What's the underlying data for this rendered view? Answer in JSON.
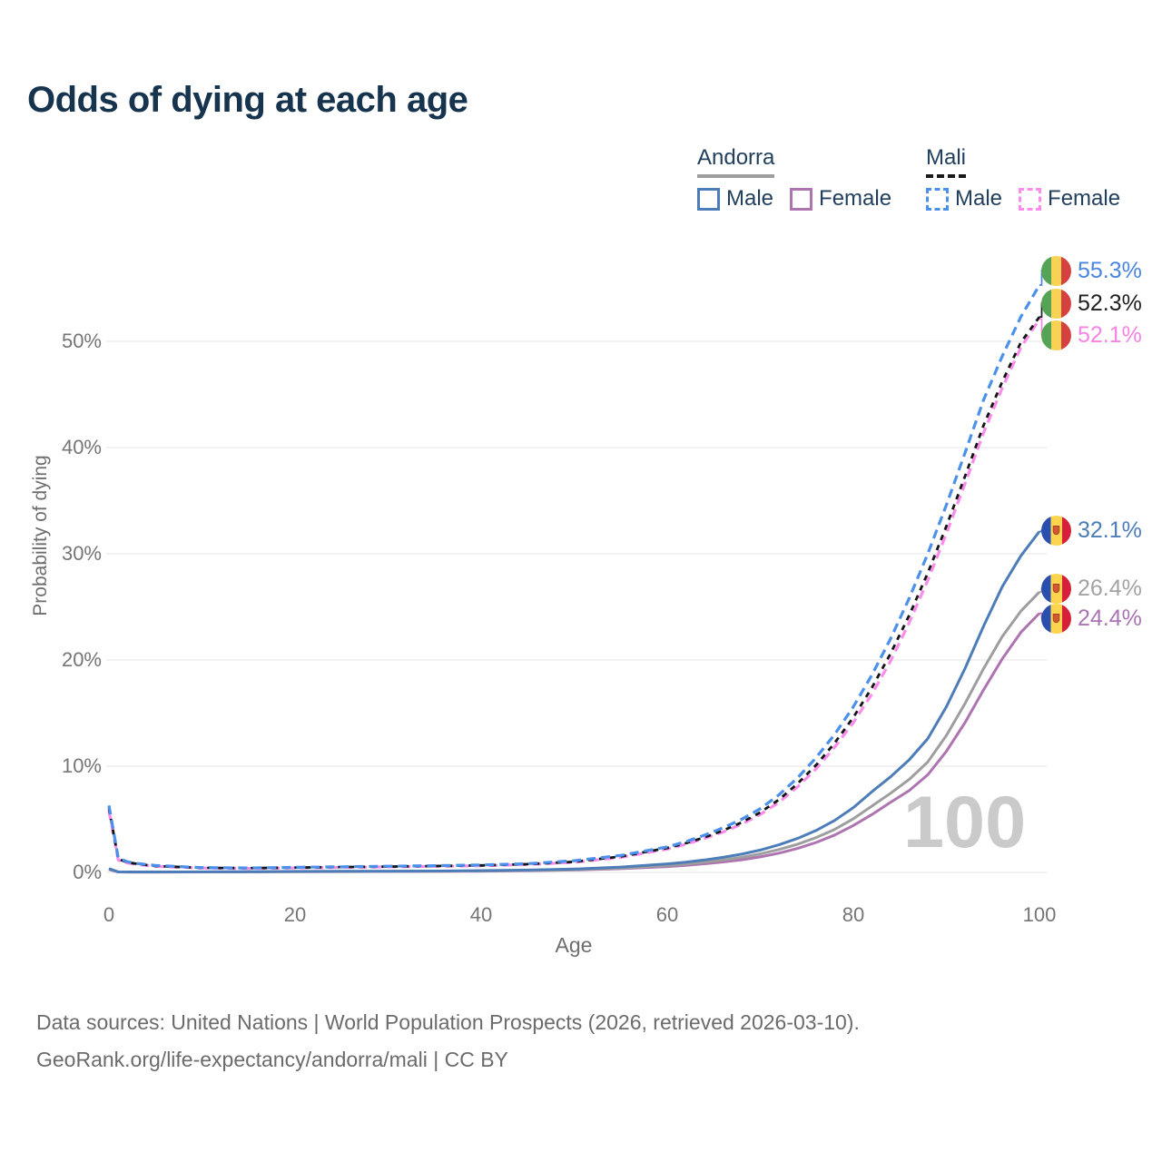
{
  "title": "Odds of dying at each age",
  "legend": {
    "groups": [
      {
        "name": "Andorra",
        "line_style": "solid",
        "underline_color": "#9e9e9e",
        "items": [
          {
            "label": "Male",
            "color": "#4d7db8"
          },
          {
            "label": "Female",
            "color": "#ad74b0"
          }
        ]
      },
      {
        "name": "Mali",
        "line_style": "dashed",
        "underline_color": "#1a1a1a",
        "items": [
          {
            "label": "Male",
            "color": "#4b90ea"
          },
          {
            "label": "Female",
            "color": "#fb8ceb"
          }
        ]
      }
    ]
  },
  "axes": {
    "x": {
      "label": "Age",
      "ticks": [
        "0",
        "20",
        "40",
        "60",
        "80",
        "100"
      ]
    },
    "y": {
      "label": "Probability of dying",
      "ticks": [
        "0%",
        "10%",
        "20%",
        "30%",
        "40%",
        "50%"
      ]
    }
  },
  "watermark": "100",
  "flags": {
    "mali": {
      "stripes": [
        "#55a455",
        "#f8d255",
        "#d5413e"
      ]
    },
    "andorra": {
      "stripes": [
        "#2a4fae",
        "#fcd44e",
        "#d62039"
      ],
      "crest": "#cf5a30"
    }
  },
  "annotations": [
    {
      "value": "55.3%",
      "flag": "mali",
      "color": "#4a86e0",
      "end_pct": 55.3
    },
    {
      "value": "52.3%",
      "flag": "mali",
      "color": "#1f1f1f",
      "end_pct": 52.3
    },
    {
      "value": "52.1%",
      "flag": "mali",
      "color": "#f783e3",
      "end_pct": 52.1
    },
    {
      "value": "32.1%",
      "flag": "andorra",
      "color": "#4d7db8",
      "end_pct": 32.1
    },
    {
      "value": "26.4%",
      "flag": "andorra",
      "color": "#a3a3a3",
      "end_pct": 26.4
    },
    {
      "value": "24.4%",
      "flag": "andorra",
      "color": "#ab74b5",
      "end_pct": 24.4
    }
  ],
  "footer": {
    "line1": "Data sources: United Nations | World Population Prospects (2026, retrieved 2026-03-10).",
    "line2": "GeoRank.org/life-expectancy/andorra/mali | CC BY"
  },
  "chart_data": {
    "type": "line",
    "title": "Odds of dying at each age",
    "xlabel": "Age",
    "ylabel": "Probability of dying",
    "xlim": [
      0,
      100
    ],
    "ylim_pct": [
      0,
      57
    ],
    "x_ticks": [
      0,
      20,
      40,
      60,
      80,
      100
    ],
    "y_ticks_pct": [
      0,
      10,
      20,
      30,
      40,
      50
    ],
    "grid": "horizontal",
    "legend_position": "top-right",
    "ages": [
      0,
      1,
      2,
      3,
      5,
      10,
      15,
      20,
      25,
      30,
      35,
      40,
      45,
      50,
      55,
      60,
      62,
      64,
      66,
      68,
      70,
      72,
      74,
      76,
      78,
      80,
      82,
      84,
      86,
      88,
      90,
      92,
      94,
      96,
      98,
      100
    ],
    "series": [
      {
        "name": "Andorra Female",
        "country": "Andorra",
        "sex": "Female",
        "color": "#ad74b0",
        "dash": null,
        "width": 3,
        "end_label": "24.4%",
        "values": [
          0.27,
          0.04,
          0.03,
          0.03,
          0.03,
          0.04,
          0.05,
          0.07,
          0.08,
          0.09,
          0.1,
          0.12,
          0.16,
          0.22,
          0.35,
          0.55,
          0.67,
          0.81,
          0.98,
          1.19,
          1.46,
          1.81,
          2.26,
          2.82,
          3.52,
          4.42,
          5.45,
          6.6,
          7.7,
          9.2,
          11.4,
          14.1,
          17.2,
          20.1,
          22.6,
          24.4
        ]
      },
      {
        "name": "Andorra (both)",
        "country": "Andorra",
        "sex": "Both",
        "color": "#9e9e9e",
        "dash": null,
        "width": 3,
        "end_label": "26.4%",
        "values": [
          0.31,
          0.045,
          0.035,
          0.035,
          0.035,
          0.045,
          0.06,
          0.08,
          0.09,
          0.1,
          0.11,
          0.14,
          0.18,
          0.26,
          0.41,
          0.65,
          0.79,
          0.96,
          1.17,
          1.42,
          1.74,
          2.15,
          2.65,
          3.28,
          4.05,
          5.05,
          6.25,
          7.45,
          8.75,
          10.4,
          12.9,
          15.9,
          19.2,
          22.2,
          24.6,
          26.4
        ]
      },
      {
        "name": "Andorra Male",
        "country": "Andorra",
        "sex": "Male",
        "color": "#4d7db8",
        "dash": null,
        "width": 3,
        "end_label": "32.1%",
        "values": [
          0.36,
          0.05,
          0.04,
          0.04,
          0.04,
          0.05,
          0.07,
          0.09,
          0.1,
          0.11,
          0.13,
          0.17,
          0.22,
          0.32,
          0.5,
          0.8,
          0.97,
          1.17,
          1.42,
          1.72,
          2.1,
          2.6,
          3.2,
          3.95,
          4.9,
          6.1,
          7.6,
          9.0,
          10.6,
          12.6,
          15.6,
          19.2,
          23.2,
          26.9,
          29.8,
          32.1
        ]
      },
      {
        "name": "Mali Female",
        "country": "Mali",
        "sex": "Female",
        "color": "#fb8ceb",
        "dash": "10 6",
        "width": 3.2,
        "end_label": "52.1%",
        "values": [
          5.8,
          1.15,
          0.88,
          0.75,
          0.57,
          0.41,
          0.38,
          0.42,
          0.47,
          0.52,
          0.57,
          0.62,
          0.74,
          0.95,
          1.42,
          2.2,
          2.65,
          3.2,
          3.8,
          4.55,
          5.45,
          6.6,
          8.05,
          9.75,
          11.8,
          14.1,
          16.8,
          19.9,
          23.5,
          27.5,
          31.9,
          36.6,
          41.4,
          45.6,
          49.4,
          52.1
        ]
      },
      {
        "name": "Mali (both)",
        "country": "Mali",
        "sex": "Both",
        "color": "#141414",
        "dash": "6 6",
        "width": 2.8,
        "end_label": "52.3%",
        "values": [
          6.05,
          1.25,
          0.95,
          0.8,
          0.6,
          0.43,
          0.4,
          0.45,
          0.5,
          0.55,
          0.6,
          0.66,
          0.78,
          1.0,
          1.5,
          2.3,
          2.75,
          3.3,
          3.95,
          4.7,
          5.65,
          6.85,
          8.35,
          10.1,
          12.2,
          14.6,
          17.4,
          20.6,
          24.2,
          28.2,
          32.6,
          37.3,
          42.1,
          46.2,
          49.9,
          52.3
        ]
      },
      {
        "name": "Mali Male",
        "country": "Mali",
        "sex": "Male",
        "color": "#4b90ea",
        "dash": "10 6",
        "width": 3.2,
        "end_label": "55.3%",
        "values": [
          6.3,
          1.35,
          1.0,
          0.85,
          0.65,
          0.45,
          0.42,
          0.48,
          0.53,
          0.58,
          0.63,
          0.7,
          0.82,
          1.1,
          1.6,
          2.4,
          2.9,
          3.5,
          4.2,
          5.0,
          6.0,
          7.3,
          8.9,
          10.8,
          13.0,
          15.6,
          18.6,
          22.0,
          25.8,
          30.0,
          34.6,
          39.5,
          44.5,
          48.6,
          52.3,
          55.3
        ]
      }
    ]
  }
}
